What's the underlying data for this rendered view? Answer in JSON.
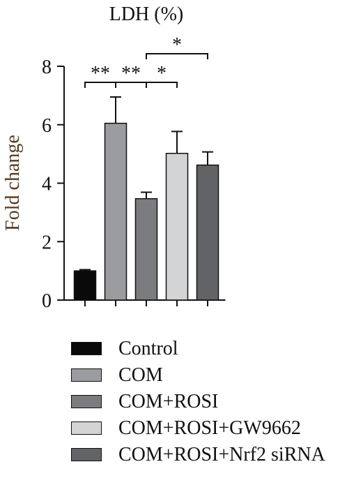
{
  "chart_data": {
    "type": "bar",
    "title": "LDH (%)",
    "ylabel": "Fold change",
    "xlabel": "",
    "ylim": [
      0,
      8
    ],
    "yticks": [
      0,
      2,
      4,
      6,
      8
    ],
    "categories": [
      "Control",
      "COM",
      "COM+ROSI",
      "COM+ROSI+GW9662",
      "COM+ROSI+Nrf2 siRNA"
    ],
    "values": [
      1.0,
      6.05,
      3.47,
      5.02,
      4.62
    ],
    "errors": [
      0.04,
      0.9,
      0.22,
      0.75,
      0.45
    ],
    "colors": [
      "#0a0a0a",
      "#9b9ca0",
      "#7b7c80",
      "#d3d4d6",
      "#626366"
    ],
    "significance": [
      {
        "from": 0,
        "to": 1,
        "label": "**"
      },
      {
        "from": 1,
        "to": 2,
        "label": "**"
      },
      {
        "from": 2,
        "to": 3,
        "label": "*"
      },
      {
        "from": 2,
        "to": 4,
        "label": "*"
      }
    ]
  }
}
